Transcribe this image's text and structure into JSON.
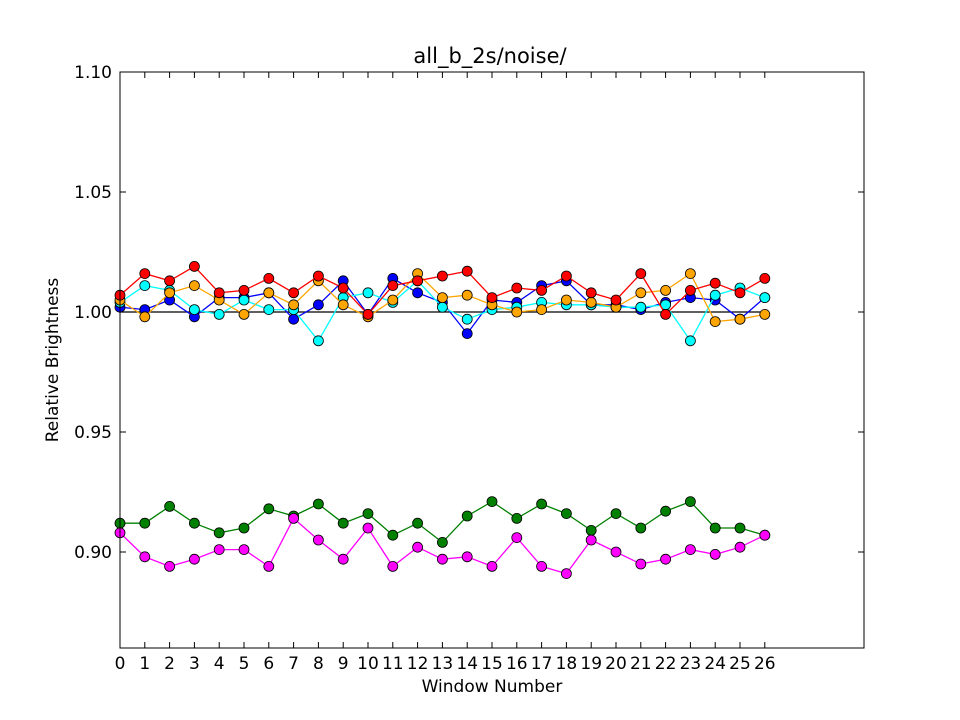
{
  "chart_data": {
    "type": "line",
    "title": "all_b_2s/noise/",
    "xlabel": "Window Number",
    "ylabel": "Relative Brightness",
    "xlim": [
      0,
      30
    ],
    "ylim": [
      0.86,
      1.1
    ],
    "x_ticks": [
      0,
      1,
      2,
      3,
      4,
      5,
      6,
      7,
      8,
      9,
      10,
      11,
      12,
      13,
      14,
      15,
      16,
      17,
      18,
      19,
      20,
      21,
      22,
      23,
      24,
      25,
      26
    ],
    "y_ticks": [
      "0.90",
      "0.95",
      "1.00",
      "1.05",
      "1.10"
    ],
    "grid": false,
    "reference_line": 1.0,
    "x": [
      0,
      1,
      2,
      3,
      4,
      5,
      6,
      7,
      8,
      9,
      10,
      11,
      12,
      13,
      14,
      15,
      16,
      17,
      18,
      19,
      20,
      21,
      22,
      23,
      24,
      25,
      26
    ],
    "series": [
      {
        "color": "#0000ff",
        "values": [
          1.002,
          1.001,
          1.005,
          0.998,
          1.006,
          1.006,
          1.008,
          0.997,
          1.003,
          1.013,
          0.999,
          1.014,
          1.008,
          1.004,
          0.991,
          1.005,
          1.004,
          1.011,
          1.013,
          1.003,
          1.003,
          1.001,
          1.004,
          1.006,
          1.005,
          0.997,
          1.006
        ]
      },
      {
        "color": "#00ffff",
        "values": [
          1.004,
          1.011,
          1.009,
          1.001,
          0.999,
          1.005,
          1.001,
          1.001,
          0.988,
          1.006,
          1.008,
          1.004,
          1.013,
          1.002,
          0.997,
          1.001,
          1.002,
          1.004,
          1.003,
          1.003,
          1.002,
          1.002,
          1.003,
          0.988,
          1.007,
          1.01,
          1.006
        ]
      },
      {
        "color": "#ffa500",
        "values": [
          1.005,
          0.998,
          1.008,
          1.011,
          1.005,
          0.999,
          1.008,
          1.003,
          1.013,
          1.003,
          0.998,
          1.005,
          1.016,
          1.006,
          1.007,
          1.003,
          1.0,
          1.001,
          1.005,
          1.004,
          1.002,
          1.008,
          1.009,
          1.016,
          0.996,
          0.997,
          0.999
        ]
      },
      {
        "color": "#ff0000",
        "values": [
          1.007,
          1.016,
          1.013,
          1.019,
          1.008,
          1.009,
          1.014,
          1.008,
          1.015,
          1.01,
          0.999,
          1.011,
          1.013,
          1.015,
          1.017,
          1.006,
          1.01,
          1.009,
          1.015,
          1.008,
          1.005,
          1.016,
          0.999,
          1.009,
          1.012,
          1.008,
          1.014
        ]
      },
      {
        "color": "#008000",
        "values": [
          0.912,
          0.912,
          0.919,
          0.912,
          0.908,
          0.91,
          0.918,
          0.915,
          0.92,
          0.912,
          0.916,
          0.907,
          0.912,
          0.904,
          0.915,
          0.921,
          0.914,
          0.92,
          0.916,
          0.909,
          0.916,
          0.91,
          0.917,
          0.921,
          0.91,
          0.91,
          0.907
        ]
      },
      {
        "color": "#ff00ff",
        "values": [
          0.908,
          0.898,
          0.894,
          0.897,
          0.901,
          0.901,
          0.894,
          0.914,
          0.905,
          0.897,
          0.91,
          0.894,
          0.902,
          0.897,
          0.898,
          0.894,
          0.906,
          0.894,
          0.891,
          0.905,
          0.9,
          0.895,
          0.897,
          0.901,
          0.899,
          0.902,
          0.907
        ]
      }
    ]
  }
}
